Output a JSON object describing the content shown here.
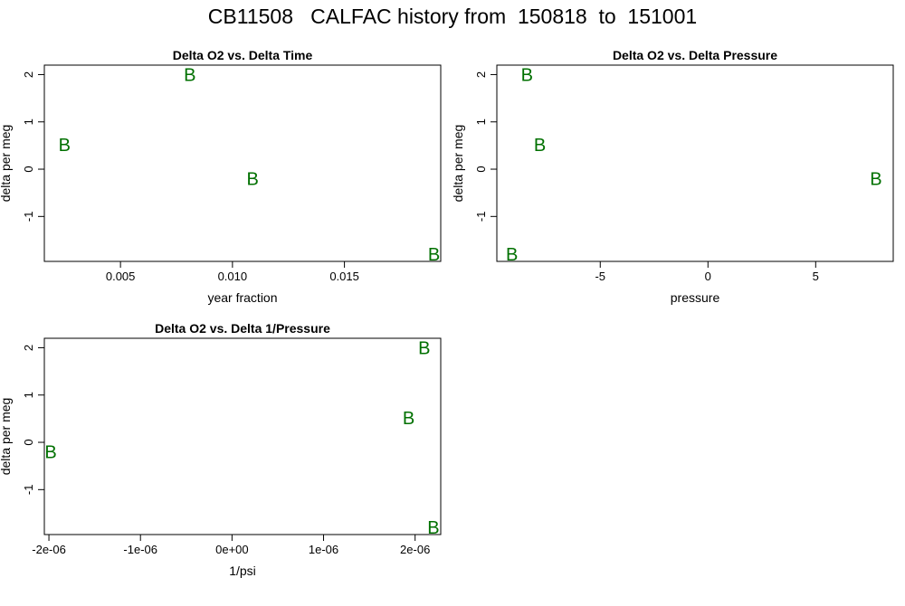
{
  "page_title": "CB11508   CALFAC history from  150818  to  151001",
  "point_color": "#007000",
  "chart_data": [
    {
      "type": "scatter",
      "title": "Delta O2 vs. Delta Time",
      "xlabel": "year fraction",
      "ylabel": "delta per meg",
      "marker": "B",
      "xlim": [
        0.0016,
        0.0193
      ],
      "ylim": [
        -1.95,
        2.2
      ],
      "xticks": [
        0.005,
        0.01,
        0.015
      ],
      "xtick_labels": [
        "0.005",
        "0.010",
        "0.015"
      ],
      "yticks": [
        -1,
        0,
        1,
        2
      ],
      "ytick_labels": [
        "-1",
        "0",
        "1",
        "2"
      ],
      "x": [
        0.0025,
        0.0081,
        0.0109,
        0.019
      ],
      "y": [
        0.52,
        2.0,
        -0.2,
        -1.8
      ]
    },
    {
      "type": "scatter",
      "title": "Delta O2 vs. Delta Pressure",
      "xlabel": "pressure",
      "ylabel": "delta per meg",
      "marker": "B",
      "xlim": [
        -9.8,
        8.6
      ],
      "ylim": [
        -1.95,
        2.2
      ],
      "xticks": [
        -5,
        0,
        5
      ],
      "xtick_labels": [
        "-5",
        "0",
        "5"
      ],
      "yticks": [
        -1,
        0,
        1,
        2
      ],
      "ytick_labels": [
        "-1",
        "0",
        "1",
        "2"
      ],
      "x": [
        -8.4,
        -7.8,
        7.8,
        -9.1
      ],
      "y": [
        2.0,
        0.52,
        -0.2,
        -1.8
      ]
    },
    {
      "type": "scatter",
      "title": "Delta O2 vs. Delta 1/Pressure",
      "xlabel": "1/psi",
      "ylabel": "delta per meg",
      "marker": "B",
      "xlim": [
        -2.05e-06,
        2.28e-06
      ],
      "ylim": [
        -1.95,
        2.2
      ],
      "xticks": [
        -2e-06,
        -1e-06,
        0,
        1e-06,
        2e-06
      ],
      "xtick_labels": [
        "-2e-06",
        "-1e-06",
        "0e+00",
        "1e-06",
        "2e-06"
      ],
      "yticks": [
        -1,
        0,
        1,
        2
      ],
      "ytick_labels": [
        "-1",
        "0",
        "1",
        "2"
      ],
      "x": [
        2.1e-06,
        1.93e-06,
        -1.98e-06,
        2.2e-06
      ],
      "y": [
        2.0,
        0.52,
        -0.2,
        -1.8
      ]
    }
  ]
}
